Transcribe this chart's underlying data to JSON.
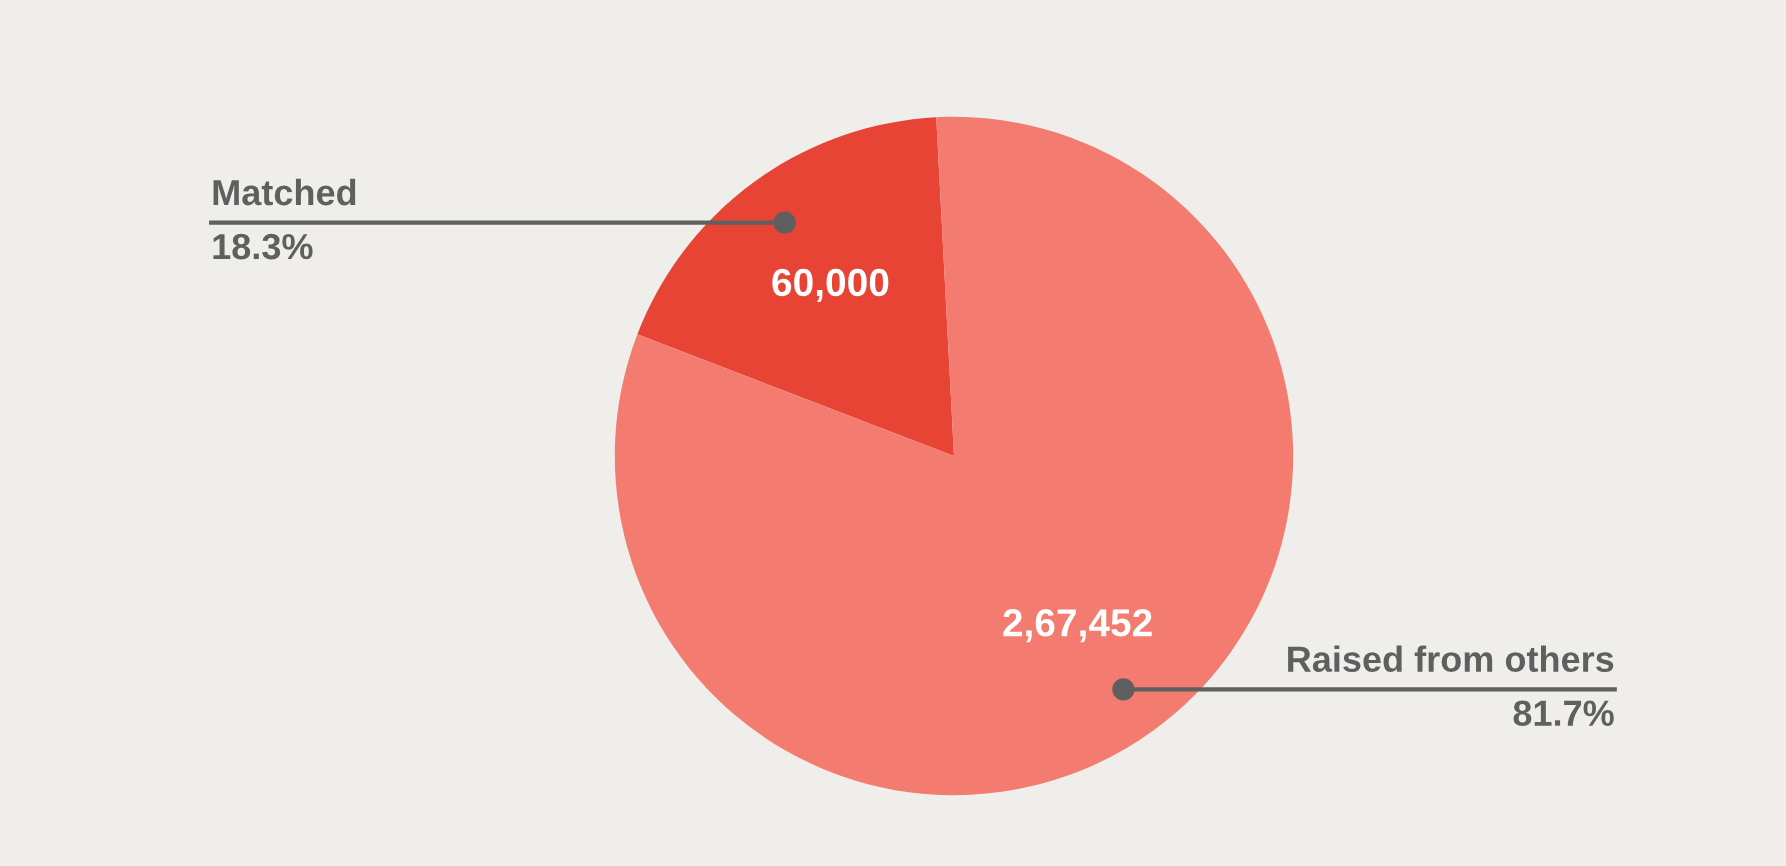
{
  "chart_data": {
    "type": "pie",
    "categories": [
      "Matched",
      "Raised from others"
    ],
    "values": [
      60000,
      267452
    ],
    "value_labels": [
      "60,000",
      "2,67,452"
    ],
    "colors": [
      "#e84436",
      "#f47b6f"
    ],
    "annotations": [
      "18.3%",
      "81.7%"
    ]
  }
}
